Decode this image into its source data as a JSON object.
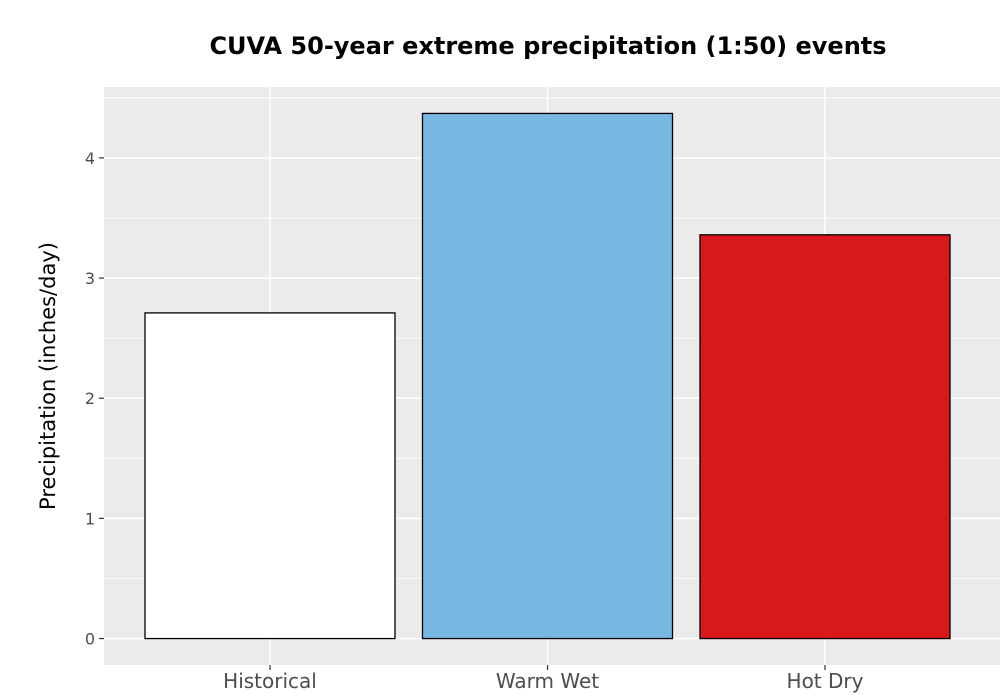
{
  "chart_data": {
    "type": "bar",
    "title": "CUVA 50-year extreme precipitation (1:50) events",
    "xlabel": "",
    "ylabel": "Precipitation (inches/day)",
    "categories": [
      "Historical",
      "Warm Wet",
      "Hot Dry"
    ],
    "values": [
      2.71,
      4.37,
      3.36
    ],
    "bar_colors": [
      "#ffffff",
      "#78b7e2",
      "#d7191c"
    ],
    "bar_outline_color": "#000000",
    "yticks": [
      "0",
      "1",
      "2",
      "3",
      "4"
    ],
    "ylim": [
      -0.22,
      4.59
    ],
    "grid": true,
    "panel_background": "#ebebeb",
    "grid_color": "#ffffff",
    "legend": "none"
  }
}
